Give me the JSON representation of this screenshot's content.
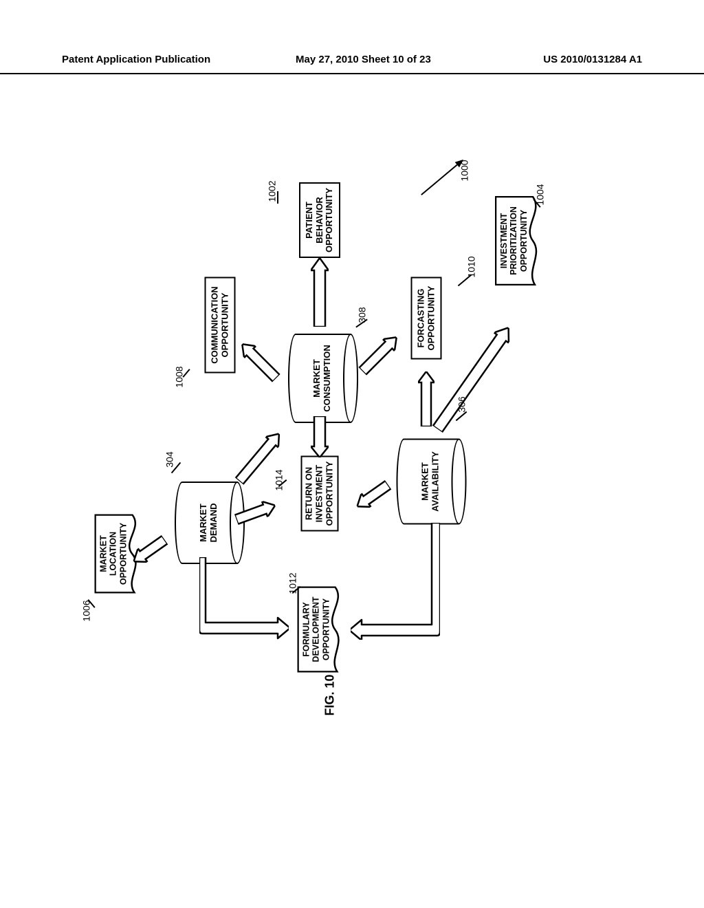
{
  "header": {
    "left": "Patent Application Publication",
    "mid": "May 27, 2010  Sheet 10 of 23",
    "right": "US 2010/0131284 A1"
  },
  "figure_label": "FIG. 10",
  "refs": {
    "r1000": "1000",
    "r1002": "1002",
    "r1004": "1004",
    "r1006": "1006",
    "r1008": "1008",
    "r1010": "1010",
    "r1012": "1012",
    "r1014": "1014",
    "r304": "304",
    "r306": "306",
    "r308": "308"
  },
  "nodes": {
    "patient_behavior": "PATIENT\nBEHAVIOR\nOPPORTUNITY",
    "communication": "COMMUNICATION\nOPPORTUNITY",
    "forecasting": "FORCASTING\nOPPORTUNITY",
    "market_consumption": "MARKET\nCONSUMPTION",
    "market_demand": "MARKET\nDEMAND",
    "market_availability": "MARKET\nAVAILABILITY",
    "roi": "RETURN ON\nINVESTMENT\nOPPORTUNITY",
    "market_location": "MARKET\nLOCATION\nOPPORTUNITY",
    "investment_prio": "INVESTMENT\nPRIORITIZATION\nOPPORTUNITY",
    "formulary": "FORMULARY\nDEVELOPMENT\nOPPORTUNITY"
  },
  "style": {
    "stroke": "#000000",
    "stroke_width": 2.5,
    "bg": "#ffffff",
    "font_family": "Arial",
    "rotation_deg": -90
  }
}
